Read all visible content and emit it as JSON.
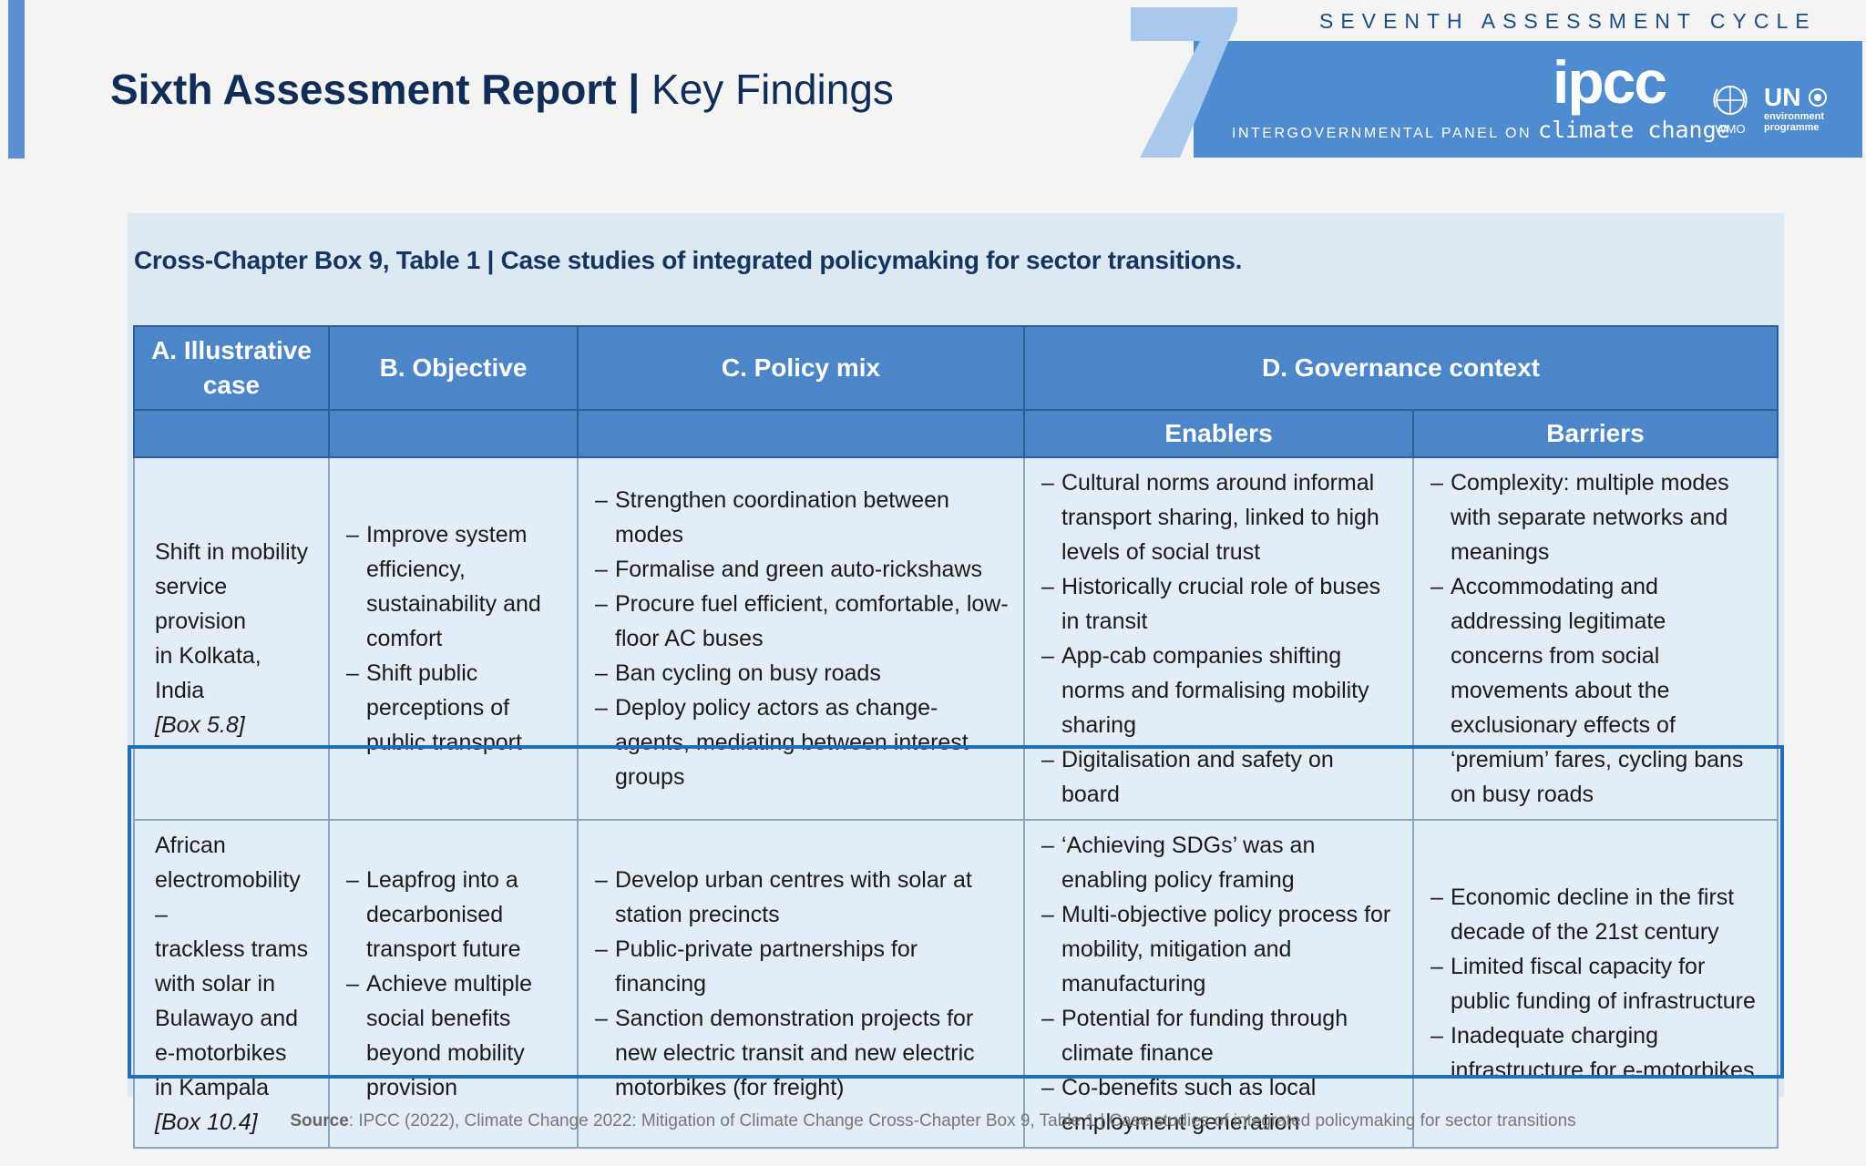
{
  "header": {
    "title_bold": "Sixth Assessment Report |",
    "title_rest": " Key Findings",
    "cycle_label": "SEVENTH ASSESSMENT CYCLE",
    "logo_word": "ipcc",
    "logo_sub_prefix": "INTERGOVERNMENTAL PANEL ON ",
    "logo_sub_cc": "climate change",
    "wmo_label": "WMO",
    "unep_un": "UN",
    "unep_env": "environment",
    "unep_prog": "programme",
    "colors": {
      "banner": "#4f8bcf",
      "seven": "#a8c8ec",
      "title": "#0f2d57"
    }
  },
  "table": {
    "caption": "Cross-Chapter Box 9, Table 1 | Case studies of integrated policymaking for sector transitions.",
    "headers": {
      "a": "A. Illustrative case",
      "b": "B. Objective",
      "c": "C. Policy mix",
      "d": "D. Governance context",
      "enablers": "Enablers",
      "barriers": "Barriers"
    },
    "rows": [
      {
        "case_lines": [
          "Shift in mobility",
          "service provision",
          "in Kolkata, India"
        ],
        "case_ref": "[Box 5.8]",
        "objective": [
          "Improve system efficiency, sustainability and comfort",
          "Shift public perceptions of public transport"
        ],
        "policy_mix": [
          "Strengthen coordination between modes",
          "Formalise and green auto-rickshaws",
          "Procure fuel efficient, comfortable, low-floor AC buses",
          "Ban cycling on busy roads",
          "Deploy policy actors as change-agents, mediating between interest groups"
        ],
        "enablers": [
          "Cultural norms around informal transport sharing, linked to high levels of social trust",
          "Historically crucial role of buses in transit",
          "App-cab companies shifting norms and formalising mobility sharing",
          "Digitalisation and safety on board"
        ],
        "barriers": [
          "Complexity: multiple modes with separate networks and meanings",
          "Accommodating and addressing legitimate concerns from social movements about the exclusionary effects of ‘premium’ fares, cycling bans on busy roads"
        ]
      },
      {
        "case_lines": [
          "African",
          "electromobility –",
          "trackless trams",
          "with solar in",
          "Bulawayo and",
          "e-motorbikes",
          "in Kampala"
        ],
        "case_ref": "[Box 10.4]",
        "objective": [
          "Leapfrog into a decarbonised transport future",
          "Achieve multiple social benefits beyond mobility provision"
        ],
        "policy_mix": [
          "Develop urban centres with solar at station precincts",
          "Public-private partnerships for financing",
          "Sanction demonstration projects for new electric transit and new electric motorbikes (for freight)"
        ],
        "enablers": [
          "‘Achieving SDGs’ was an enabling policy framing",
          "Multi-objective policy process for mobility, mitigation and manufacturing",
          "Potential for funding through climate finance",
          "Co-benefits such as local employment generation"
        ],
        "barriers": [
          "Economic decline in the first decade of the 21st century",
          "Limited fiscal capacity for public funding of infrastructure",
          "Inadequate charging infrastructure for e-motorbikes"
        ]
      }
    ]
  },
  "source": {
    "label": "Source",
    "text": ": IPCC (2022), Climate Change 2022: Mitigation of Climate Change Cross-Chapter Box 9, Table 1 | Case studies of integrated policymaking for sector transitions"
  }
}
